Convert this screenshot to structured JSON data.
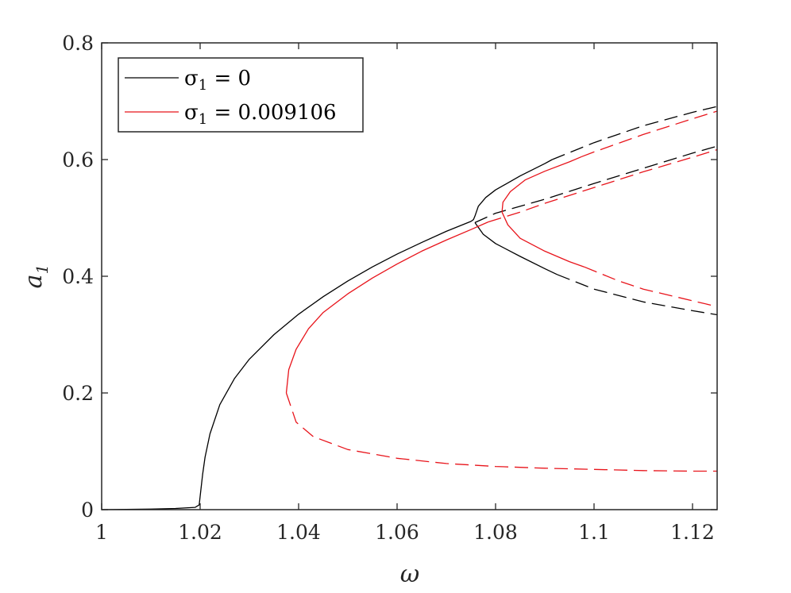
{
  "chart_data": {
    "type": "line",
    "xlabel": "ω",
    "ylabel": "a",
    "ylabel_sub": "1",
    "xlim": [
      1,
      1.125
    ],
    "ylim": [
      0,
      0.8
    ],
    "xticks": [
      1,
      1.02,
      1.04,
      1.06,
      1.08,
      1.1,
      1.12
    ],
    "xtick_labels": [
      "1",
      "1.02",
      "1.04",
      "1.06",
      "1.08",
      "1.1",
      "1.12"
    ],
    "yticks": [
      0,
      0.2,
      0.4,
      0.6,
      0.8
    ],
    "ytick_labels": [
      "0",
      "0.2",
      "0.4",
      "0.6",
      "0.8"
    ],
    "grid": false,
    "legend_position": "top-left",
    "series": [
      {
        "name": "σ1 = 0",
        "legend_prefix": "σ",
        "legend_sub": "1",
        "legend_suffix": " = 0",
        "color": "#000000",
        "segments": [
          {
            "style": "solid",
            "points": [
              [
                1.0,
                0.0
              ],
              [
                1.005,
                0.0005
              ],
              [
                1.01,
                0.001
              ],
              [
                1.015,
                0.002
              ],
              [
                1.019,
                0.004
              ],
              [
                1.0198,
                0.008
              ],
              [
                1.0201,
                0.03
              ],
              [
                1.0205,
                0.06
              ],
              [
                1.021,
                0.09
              ],
              [
                1.022,
                0.13
              ],
              [
                1.024,
                0.18
              ],
              [
                1.027,
                0.225
              ],
              [
                1.03,
                0.258
              ],
              [
                1.035,
                0.3
              ],
              [
                1.04,
                0.335
              ],
              [
                1.045,
                0.365
              ],
              [
                1.05,
                0.392
              ],
              [
                1.055,
                0.416
              ],
              [
                1.06,
                0.438
              ],
              [
                1.065,
                0.458
              ],
              [
                1.07,
                0.477
              ],
              [
                1.075,
                0.494
              ],
              [
                1.0755,
                0.497
              ],
              [
                1.0758,
                0.503
              ],
              [
                1.0765,
                0.52
              ],
              [
                1.078,
                0.535
              ],
              [
                1.08,
                0.548
              ],
              [
                1.085,
                0.572
              ],
              [
                1.09,
                0.593
              ],
              [
                1.0915,
                0.6
              ]
            ]
          },
          {
            "style": "dashed",
            "points": [
              [
                1.0915,
                0.6
              ],
              [
                1.1,
                0.629
              ],
              [
                1.11,
                0.658
              ],
              [
                1.12,
                0.681
              ],
              [
                1.125,
                0.691
              ]
            ]
          },
          {
            "style": "dashed",
            "points": [
              [
                1.0758,
                0.492
              ],
              [
                1.08,
                0.508
              ],
              [
                1.09,
                0.532
              ],
              [
                1.1,
                0.559
              ],
              [
                1.11,
                0.585
              ],
              [
                1.12,
                0.611
              ],
              [
                1.125,
                0.623
              ]
            ]
          },
          {
            "style": "solid",
            "points": [
              [
                1.0758,
                0.492
              ],
              [
                1.0775,
                0.472
              ],
              [
                1.08,
                0.456
              ],
              [
                1.085,
                0.434
              ],
              [
                1.09,
                0.413
              ],
              [
                1.0925,
                0.403
              ]
            ]
          },
          {
            "style": "dashed",
            "points": [
              [
                1.0925,
                0.403
              ],
              [
                1.1,
                0.378
              ],
              [
                1.11,
                0.356
              ],
              [
                1.12,
                0.341
              ],
              [
                1.125,
                0.334
              ]
            ]
          }
        ]
      },
      {
        "name": "σ1 = 0.009106",
        "legend_prefix": "σ",
        "legend_sub": "1",
        "legend_suffix": " = 0.009106",
        "color": "#e8141b",
        "segments": [
          {
            "style": "dashed",
            "points": [
              [
                1.0375,
                0.2
              ],
              [
                1.0395,
                0.15
              ],
              [
                1.043,
                0.125
              ],
              [
                1.05,
                0.103
              ],
              [
                1.06,
                0.088
              ],
              [
                1.07,
                0.079
              ],
              [
                1.08,
                0.074
              ],
              [
                1.09,
                0.071
              ],
              [
                1.1,
                0.069
              ],
              [
                1.11,
                0.067
              ],
              [
                1.12,
                0.066
              ],
              [
                1.125,
                0.066
              ]
            ]
          },
          {
            "style": "solid",
            "points": [
              [
                1.0375,
                0.2
              ],
              [
                1.038,
                0.24
              ],
              [
                1.0395,
                0.275
              ],
              [
                1.042,
                0.31
              ],
              [
                1.045,
                0.338
              ],
              [
                1.05,
                0.37
              ],
              [
                1.055,
                0.397
              ],
              [
                1.06,
                0.421
              ],
              [
                1.065,
                0.443
              ],
              [
                1.07,
                0.462
              ],
              [
                1.075,
                0.48
              ],
              [
                1.0785,
                0.493
              ]
            ]
          },
          {
            "style": "dashed",
            "points": [
              [
                1.0785,
                0.493
              ],
              [
                1.08,
                0.497
              ],
              [
                1.085,
                0.51
              ],
              [
                1.09,
                0.525
              ],
              [
                1.1,
                0.552
              ],
              [
                1.11,
                0.579
              ],
              [
                1.12,
                0.604
              ],
              [
                1.125,
                0.617
              ]
            ]
          },
          {
            "style": "solid",
            "points": [
              [
                1.0813,
                0.51
              ],
              [
                1.0815,
                0.527
              ],
              [
                1.083,
                0.545
              ],
              [
                1.086,
                0.565
              ],
              [
                1.09,
                0.58
              ],
              [
                1.095,
                0.596
              ],
              [
                1.0975,
                0.605
              ]
            ]
          },
          {
            "style": "dashed",
            "points": [
              [
                1.0975,
                0.605
              ],
              [
                1.1,
                0.613
              ],
              [
                1.11,
                0.643
              ],
              [
                1.12,
                0.67
              ],
              [
                1.125,
                0.683
              ]
            ]
          },
          {
            "style": "solid",
            "points": [
              [
                1.0813,
                0.51
              ],
              [
                1.0825,
                0.488
              ],
              [
                1.085,
                0.465
              ],
              [
                1.09,
                0.443
              ],
              [
                1.095,
                0.425
              ],
              [
                1.098,
                0.416
              ]
            ]
          },
          {
            "style": "dashed",
            "points": [
              [
                1.098,
                0.416
              ],
              [
                1.105,
                0.392
              ],
              [
                1.11,
                0.378
              ],
              [
                1.12,
                0.358
              ],
              [
                1.125,
                0.348
              ]
            ]
          }
        ]
      }
    ]
  }
}
